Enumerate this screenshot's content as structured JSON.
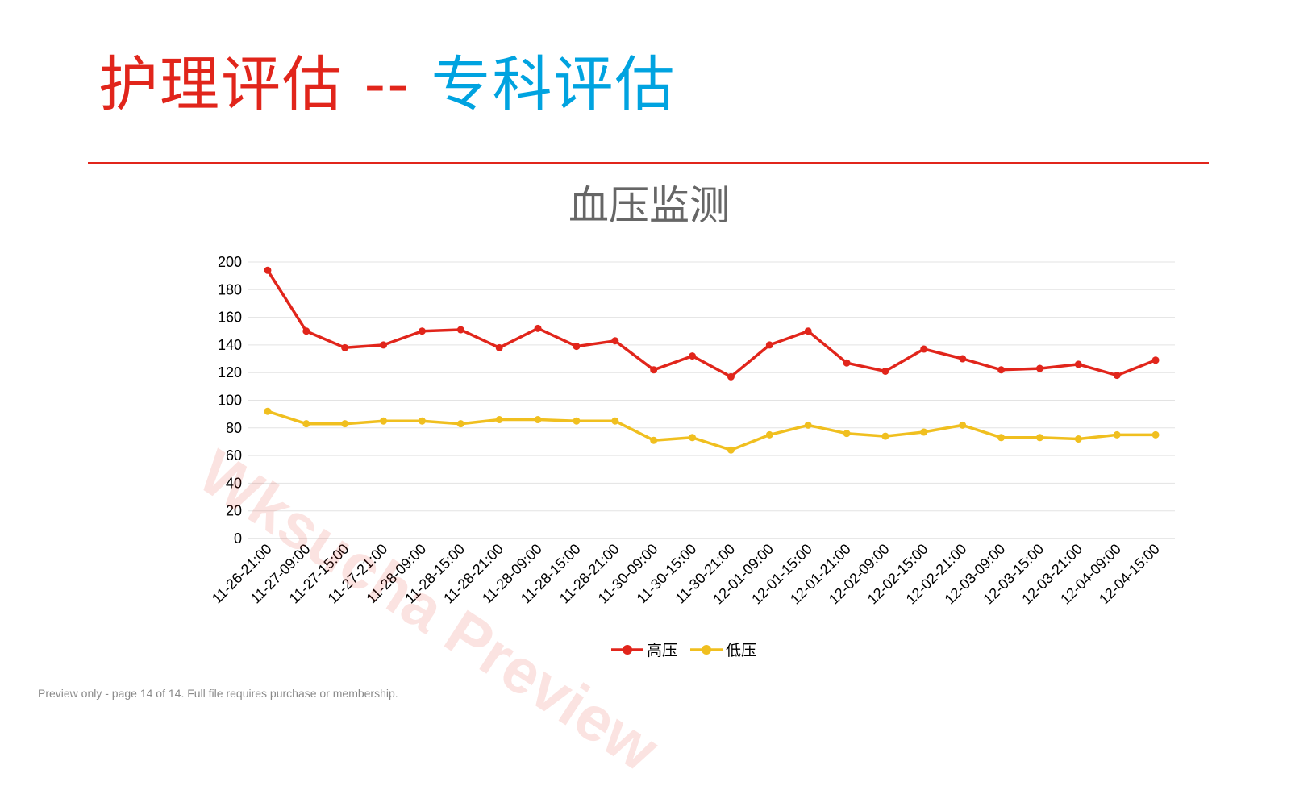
{
  "slide": {
    "title_main": "护理评估",
    "title_sep": " -- ",
    "title_sub": "专科评估",
    "colors": {
      "title_main": "#e1251b",
      "title_sub": "#00a3e0",
      "rule": "#e1251b"
    }
  },
  "watermark": "Wksucha Preview",
  "footer": {
    "note": "Preview only - page 14 of 14. Full file requires purchase or membership."
  },
  "chart_data": {
    "type": "line",
    "title": "血压监测",
    "xlabel": "",
    "ylabel": "",
    "ylim": [
      0,
      200
    ],
    "yticks": [
      0,
      20,
      40,
      60,
      80,
      100,
      120,
      140,
      160,
      180,
      200
    ],
    "grid": true,
    "legend": "bottom",
    "categories": [
      "11-26-21:00",
      "11-27-09:00",
      "11-27-15:00",
      "11-27-21:00",
      "11-28-09:00",
      "11-28-15:00",
      "11-28-21:00",
      "11-28-09:00",
      "11-28-15:00",
      "11-28-21:00",
      "11-30-09:00",
      "11-30-15:00",
      "11-30-21:00",
      "12-01-09:00",
      "12-01-15:00",
      "12-01-21:00",
      "12-02-09:00",
      "12-02-15:00",
      "12-02-21:00",
      "12-03-09:00",
      "12-03-15:00",
      "12-03-21:00",
      "12-04-09:00",
      "12-04-15:00"
    ],
    "series": [
      {
        "name": "高压",
        "color": "#e1251b",
        "values": [
          194,
          150,
          138,
          140,
          150,
          151,
          138,
          152,
          139,
          143,
          122,
          132,
          117,
          140,
          150,
          127,
          121,
          137,
          130,
          122,
          123,
          126,
          118,
          129
        ]
      },
      {
        "name": "低压",
        "color": "#f0bf1f",
        "values": [
          92,
          83,
          83,
          85,
          85,
          83,
          86,
          86,
          85,
          85,
          71,
          73,
          64,
          75,
          82,
          76,
          74,
          77,
          82,
          73,
          73,
          72,
          75,
          75
        ]
      }
    ]
  }
}
